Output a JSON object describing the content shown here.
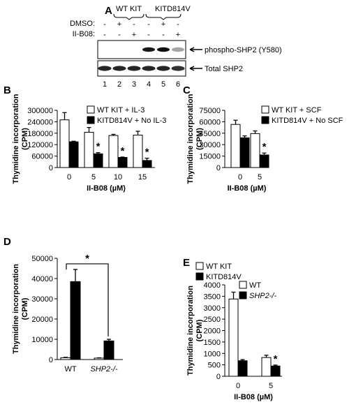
{
  "panel_a": {
    "letter": "A",
    "group_wt": "WT KIT",
    "group_mut": "KITD814V",
    "row_dmso": "DMSO:",
    "row_iib08": "II-B08:",
    "dmso_marks": [
      "-",
      "+",
      "-",
      "-",
      "+",
      "-"
    ],
    "iib08_marks": [
      "-",
      "-",
      "+",
      "-",
      "-",
      "+"
    ],
    "band_phospho_label": "phospho-SHP2 (Y580)",
    "band_total_label": "Total SHP2",
    "lanes": [
      "1",
      "2",
      "3",
      "4",
      "5",
      "6"
    ],
    "phospho_intensity": [
      0,
      0,
      0,
      0.9,
      0.95,
      0.35
    ],
    "total_intensity": [
      0.85,
      0.85,
      0.85,
      0.85,
      0.85,
      0.8
    ]
  },
  "chart_data": [
    {
      "panel": "B",
      "type": "bar",
      "ylabel": [
        "Thymidine incorporation",
        "(CPM)"
      ],
      "xlabel": "II-B08 (µM)",
      "categories": [
        "0",
        "5",
        "10",
        "15"
      ],
      "ylim": [
        0,
        300000
      ],
      "yticks": [
        "0",
        "60000",
        "120000",
        "180000",
        "240000",
        "300000"
      ],
      "series": [
        {
          "name": "WT KIT + IL-3",
          "color": "#ffffff",
          "values": [
            250000,
            185000,
            168000,
            170000
          ],
          "errors": [
            38000,
            25000,
            6000,
            20000
          ]
        },
        {
          "name": "KITD814V + No IL-3",
          "color": "#000000",
          "values": [
            135000,
            72000,
            53000,
            37000
          ],
          "errors": [
            3000,
            6000,
            2000,
            12000
          ]
        }
      ],
      "stars": [
        "",
        "*",
        "*",
        "*"
      ]
    },
    {
      "panel": "C",
      "type": "bar",
      "ylabel": [
        "Thymidine incorporation",
        "(CPM)"
      ],
      "xlabel": "II-B08 (µM)",
      "categories": [
        "0",
        "5"
      ],
      "ylim": [
        0,
        75000
      ],
      "yticks": [
        "0",
        "15000",
        "30000",
        "45000",
        "60000",
        "75000"
      ],
      "series": [
        {
          "name": "WT KIT + SCF",
          "color": "#ffffff",
          "values": [
            56500,
            44500
          ],
          "errors": [
            5500,
            3500
          ]
        },
        {
          "name": "KITD814V + No SCF",
          "color": "#000000",
          "values": [
            39000,
            16500
          ],
          "errors": [
            2500,
            2500
          ]
        }
      ],
      "stars": [
        "",
        "*"
      ]
    },
    {
      "panel": "D",
      "type": "bar",
      "ylabel": [
        "Thymidine incorporation",
        "(CPM)"
      ],
      "xlabel": "",
      "categories": [
        "WT",
        "SHP2-/-"
      ],
      "ylim": [
        0,
        50000
      ],
      "yticks": [
        "0",
        "10000",
        "20000",
        "30000",
        "40000",
        "50000"
      ],
      "series": [
        {
          "name": "WT KIT",
          "color": "#ffffff",
          "values": [
            900,
            700
          ],
          "errors": [
            200,
            150
          ]
        },
        {
          "name": "KITD814V",
          "color": "#000000",
          "values": [
            38500,
            9200
          ],
          "errors": [
            6000,
            800
          ]
        }
      ],
      "bracket_star": "*"
    },
    {
      "panel": "E",
      "type": "bar",
      "ylabel": [
        "Thymidine incorporation",
        "(CPM)"
      ],
      "xlabel": "II-B08 (µM)",
      "categories": [
        "0",
        "5"
      ],
      "ylim": [
        0,
        4000
      ],
      "yticks": [
        "0",
        "500",
        "1000",
        "1500",
        "2000",
        "2500",
        "3000",
        "3500",
        "4000"
      ],
      "series": [
        {
          "name": "WT",
          "color": "#ffffff",
          "values": [
            3380,
            820
          ],
          "errors": [
            300,
            100
          ]
        },
        {
          "name": "SHP2-/-",
          "color": "#000000",
          "values": [
            680,
            450
          ],
          "errors": [
            50,
            40
          ]
        }
      ],
      "stars": [
        "",
        "*"
      ]
    }
  ]
}
